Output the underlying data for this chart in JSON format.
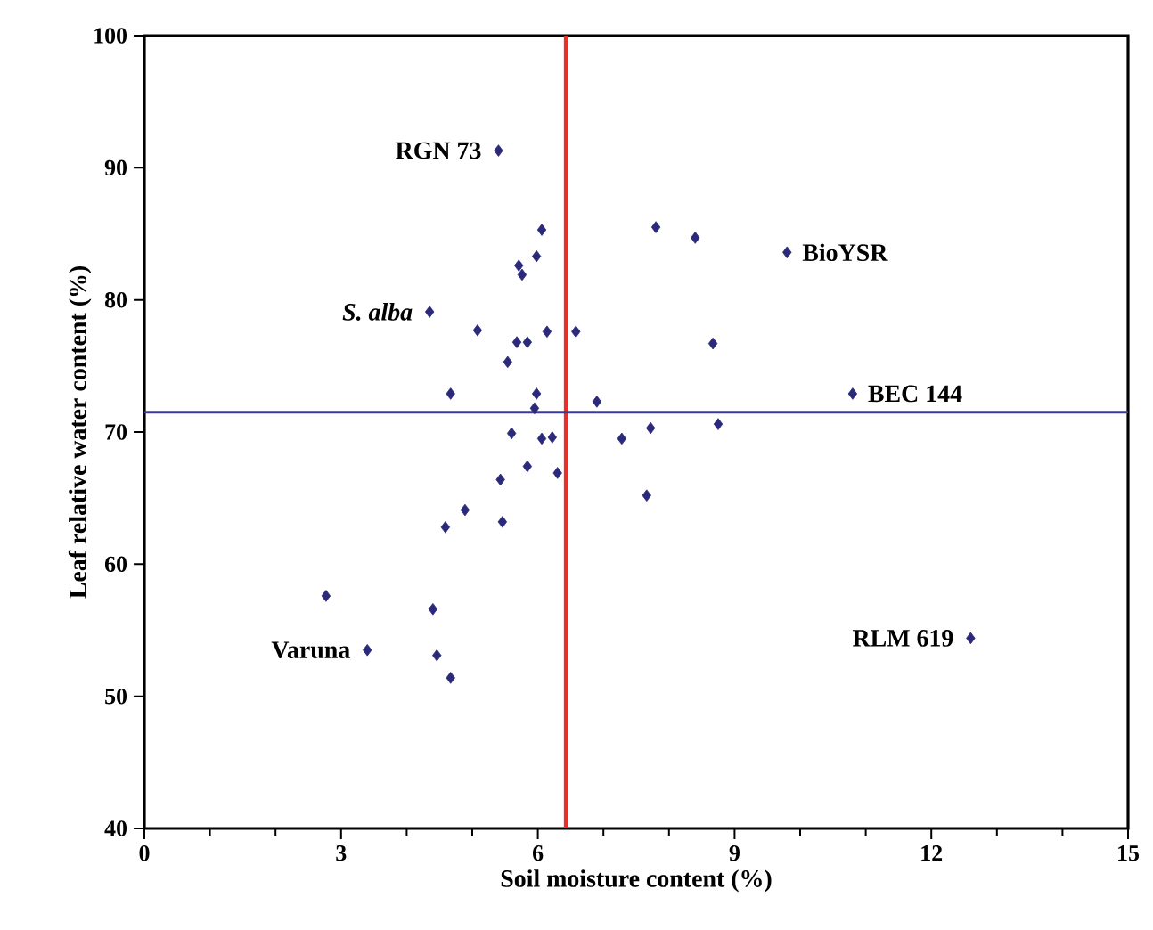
{
  "chart_data": {
    "type": "scatter",
    "xlabel": "Soil moisture content (%)",
    "ylabel": "Leaf relative water content (%)",
    "xlim": [
      0,
      15
    ],
    "xticks": [
      0,
      3,
      6,
      9,
      12,
      15
    ],
    "ylim": [
      40,
      100
    ],
    "yticks": [
      40,
      50,
      60,
      70,
      80,
      90,
      100
    ],
    "marker": "diamond",
    "series": [
      {
        "color": "#2b2a7a",
        "x": [
          5.4,
          9.8,
          10.8,
          12.6,
          3.4,
          4.35,
          6.06,
          7.8,
          5.71,
          5.76,
          5.98,
          5.08,
          5.68,
          5.84,
          6.14,
          6.58,
          5.54,
          4.67,
          5.98,
          5.95,
          6.9,
          5.6,
          6.06,
          6.22,
          7.28,
          7.72,
          5.84,
          6.3,
          5.43,
          7.66,
          4.89,
          4.59,
          5.46,
          2.77,
          4.4,
          8.4,
          8.67,
          8.75,
          4.46,
          4.67
        ],
        "values": [
          91.3,
          83.6,
          72.9,
          54.4,
          53.5,
          79.1,
          85.3,
          85.5,
          82.6,
          81.9,
          83.3,
          77.7,
          76.8,
          76.8,
          77.6,
          77.6,
          75.3,
          72.9,
          72.9,
          71.8,
          72.3,
          69.9,
          69.5,
          69.6,
          69.5,
          70.3,
          67.4,
          66.9,
          66.4,
          65.2,
          64.1,
          62.8,
          63.2,
          57.6,
          56.6,
          84.7,
          76.7,
          70.6,
          53.1,
          51.4
        ]
      }
    ],
    "ref_lines": [
      {
        "axis": "x",
        "value": 6.43,
        "color": "#e8302a"
      },
      {
        "axis": "y",
        "value": 71.5,
        "color": "#3a3a9a"
      }
    ],
    "annotations": [
      {
        "text": "RGN 73",
        "x": 5.4,
        "y": 91.3
      },
      {
        "text": "BioYSR",
        "x": 9.8,
        "y": 83.6
      },
      {
        "text": "BEC 144",
        "x": 10.8,
        "y": 72.9
      },
      {
        "text": "RLM 619",
        "x": 12.6,
        "y": 54.4
      },
      {
        "text": "Varuna",
        "x": 3.4,
        "y": 53.5
      },
      {
        "text": "*S. alba*",
        "x": 4.35,
        "y": 79.1
      }
    ]
  }
}
